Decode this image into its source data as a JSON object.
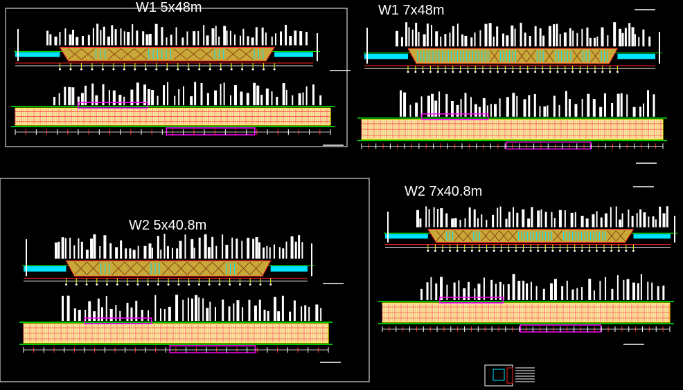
{
  "drawing": {
    "background": "#000000",
    "colors": {
      "linework": "#ffffff",
      "deck": "#c8a838",
      "deck_cross": "#8b4513",
      "cyan": "#00e5ff",
      "magenta": "#ff00ff",
      "green": "#00ff00",
      "red": "#ff2020",
      "yellow": "#ffff00",
      "plan_fill": "#ffe9a8",
      "plan_bar": "#ff6666"
    },
    "panels": [
      {
        "id": "w1-5x48",
        "title": "W1 5x48m",
        "spans": 5,
        "span_length_m": 48
      },
      {
        "id": "w1-7x48",
        "title": "W1 7x48m",
        "spans": 7,
        "span_length_m": 48
      },
      {
        "id": "w2-5x408",
        "title": "W2 5x40.8m",
        "spans": 5,
        "span_length_m": 40.8
      },
      {
        "id": "w2-7x408",
        "title": "W2 7x40.8m",
        "spans": 7,
        "span_length_m": 40.8
      }
    ]
  }
}
